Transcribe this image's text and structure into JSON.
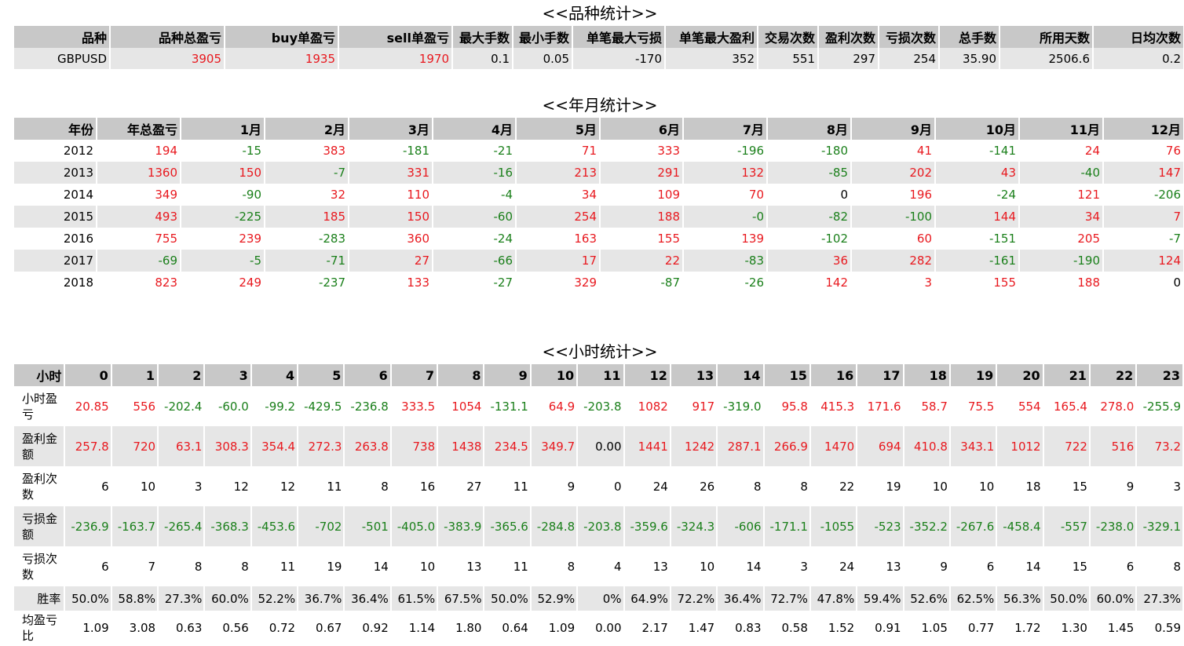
{
  "sections": {
    "symbol_title": "<<品种统计>>",
    "yearmonth_title": "<<年月统计>>",
    "hour_title": "<<小时统计>>"
  },
  "symbol_table": {
    "headers": [
      "品种",
      "品种总盈亏",
      "buy单盈亏",
      "sell单盈亏",
      "最大手数",
      "最小手数",
      "单笔最大亏损",
      "单笔最大盈利",
      "交易次数",
      "盈利次数",
      "亏损次数",
      "总手数",
      "所用天数",
      "日均次数"
    ],
    "rows": [
      [
        "GBPUSD",
        "3905",
        "1935",
        "1970",
        "0.1",
        "0.05",
        "-170",
        "352",
        "551",
        "297",
        "254",
        "35.90",
        "2506.6",
        "0.2"
      ]
    ]
  },
  "yearmonth_table": {
    "headers": [
      "年份",
      "年总盈亏",
      "1月",
      "2月",
      "3月",
      "4月",
      "5月",
      "6月",
      "7月",
      "8月",
      "9月",
      "10月",
      "11月",
      "12月"
    ],
    "rows": [
      [
        "2012",
        "194",
        "-15",
        "383",
        "-181",
        "-21",
        "71",
        "333",
        "-196",
        "-180",
        "41",
        "-141",
        "24",
        "76"
      ],
      [
        "2013",
        "1360",
        "150",
        "-7",
        "331",
        "-16",
        "213",
        "291",
        "132",
        "-85",
        "202",
        "43",
        "-40",
        "147"
      ],
      [
        "2014",
        "349",
        "-90",
        "32",
        "110",
        "-4",
        "34",
        "109",
        "70",
        "0",
        "196",
        "-24",
        "121",
        "-206"
      ],
      [
        "2015",
        "493",
        "-225",
        "185",
        "150",
        "-60",
        "254",
        "188",
        "-0",
        "-82",
        "-100",
        "144",
        "34",
        "7"
      ],
      [
        "2016",
        "755",
        "239",
        "-283",
        "360",
        "-24",
        "163",
        "155",
        "139",
        "-102",
        "60",
        "-151",
        "205",
        "-7"
      ],
      [
        "2017",
        "-69",
        "-5",
        "-71",
        "27",
        "-66",
        "17",
        "22",
        "-83",
        "36",
        "282",
        "-161",
        "-190",
        "124"
      ],
      [
        "2018",
        "823",
        "249",
        "-237",
        "133",
        "-27",
        "329",
        "-87",
        "-26",
        "142",
        "3",
        "155",
        "188",
        "0"
      ]
    ]
  },
  "hour_table": {
    "headers": [
      "小时",
      "0",
      "1",
      "2",
      "3",
      "4",
      "5",
      "6",
      "7",
      "8",
      "9",
      "10",
      "11",
      "12",
      "13",
      "14",
      "15",
      "16",
      "17",
      "18",
      "19",
      "20",
      "21",
      "22",
      "23"
    ],
    "rows": [
      {
        "label": "小时盈亏",
        "values": [
          "20.85",
          "556",
          "-202.4",
          "-60.0",
          "-99.2",
          "-429.5",
          "-236.8",
          "333.5",
          "1054",
          "-131.1",
          "64.9",
          "-203.8",
          "1082",
          "917",
          "-319.0",
          "95.8",
          "415.3",
          "171.6",
          "58.7",
          "75.5",
          "554",
          "165.4",
          "278.0",
          "-255.9"
        ]
      },
      {
        "label": "盈利金额",
        "values": [
          "257.8",
          "720",
          "63.1",
          "308.3",
          "354.4",
          "272.3",
          "263.8",
          "738",
          "1438",
          "234.5",
          "349.7",
          "0.00",
          "1441",
          "1242",
          "287.1",
          "266.9",
          "1470",
          "694",
          "410.8",
          "343.1",
          "1012",
          "722",
          "516",
          "73.2"
        ]
      },
      {
        "label": "盈利次数",
        "values": [
          "6",
          "10",
          "3",
          "12",
          "12",
          "11",
          "8",
          "16",
          "27",
          "11",
          "9",
          "0",
          "24",
          "26",
          "8",
          "8",
          "22",
          "19",
          "10",
          "10",
          "18",
          "15",
          "9",
          "3"
        ]
      },
      {
        "label": "亏损金额",
        "values": [
          "-236.9",
          "-163.7",
          "-265.4",
          "-368.3",
          "-453.6",
          "-702",
          "-501",
          "-405.0",
          "-383.9",
          "-365.6",
          "-284.8",
          "-203.8",
          "-359.6",
          "-324.3",
          "-606",
          "-171.1",
          "-1055",
          "-523",
          "-352.2",
          "-267.6",
          "-458.4",
          "-557",
          "-238.0",
          "-329.1"
        ]
      },
      {
        "label": "亏损次数",
        "values": [
          "6",
          "7",
          "8",
          "8",
          "11",
          "19",
          "14",
          "10",
          "13",
          "11",
          "8",
          "4",
          "13",
          "10",
          "14",
          "3",
          "24",
          "13",
          "9",
          "6",
          "14",
          "15",
          "6",
          "8"
        ]
      },
      {
        "label": "胜率",
        "values": [
          "50.0%",
          "58.8%",
          "27.3%",
          "60.0%",
          "52.2%",
          "36.7%",
          "36.4%",
          "61.5%",
          "67.5%",
          "50.0%",
          "52.9%",
          "0%",
          "64.9%",
          "72.2%",
          "36.4%",
          "72.7%",
          "47.8%",
          "59.4%",
          "52.6%",
          "62.5%",
          "56.3%",
          "50.0%",
          "60.0%",
          "27.3%"
        ]
      },
      {
        "label": "均盈亏比",
        "values": [
          "1.09",
          "3.08",
          "0.63",
          "0.56",
          "0.72",
          "0.67",
          "0.92",
          "1.14",
          "1.80",
          "0.64",
          "1.09",
          "0.00",
          "2.17",
          "1.47",
          "0.83",
          "0.58",
          "1.52",
          "0.91",
          "1.05",
          "0.77",
          "1.72",
          "1.30",
          "1.45",
          "0.59"
        ]
      }
    ]
  },
  "colors": {
    "positive": "#e8191f",
    "negative": "#1a7f1a",
    "neutral": "#000000",
    "header_bg": "#c8c8c8",
    "row_shade": "#e6e6e6"
  }
}
